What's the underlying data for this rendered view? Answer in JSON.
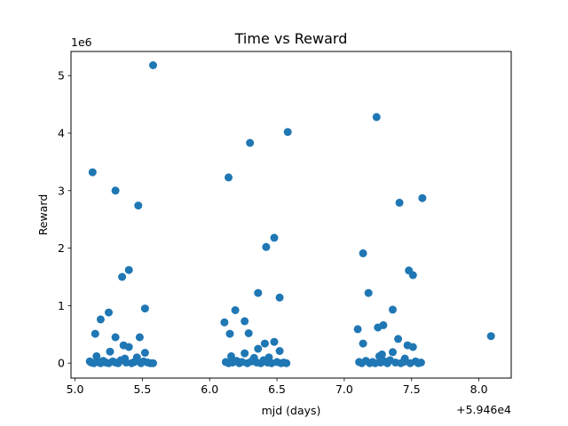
{
  "chart_data": {
    "type": "scatter",
    "title": "Time vs Reward",
    "xlabel": "mjd (days)",
    "ylabel": "Reward",
    "x_offset_label": "+5.946e4",
    "y_scale_label": "1e6",
    "xlim": [
      4.97,
      8.24
    ],
    "ylim": [
      -0.26,
      5.42
    ],
    "x_ticks": [
      5.0,
      5.5,
      6.0,
      6.5,
      7.0,
      7.5,
      8.0
    ],
    "x_tick_labels": [
      "5.0",
      "5.5",
      "6.0",
      "6.5",
      "7.0",
      "7.5",
      "8.0"
    ],
    "y_ticks": [
      0,
      1,
      2,
      3,
      4,
      5
    ],
    "y_tick_labels": [
      "0",
      "1",
      "2",
      "3",
      "4",
      "5"
    ],
    "grid": false,
    "color": "#1f77b4",
    "points": [
      {
        "x": 5.58,
        "y": 5.18
      },
      {
        "x": 5.13,
        "y": 3.32
      },
      {
        "x": 5.3,
        "y": 3.0
      },
      {
        "x": 5.47,
        "y": 2.74
      },
      {
        "x": 5.4,
        "y": 1.62
      },
      {
        "x": 5.35,
        "y": 1.5
      },
      {
        "x": 5.52,
        "y": 0.95
      },
      {
        "x": 5.25,
        "y": 0.88
      },
      {
        "x": 5.19,
        "y": 0.76
      },
      {
        "x": 5.15,
        "y": 0.51
      },
      {
        "x": 5.3,
        "y": 0.45
      },
      {
        "x": 5.48,
        "y": 0.45
      },
      {
        "x": 5.36,
        "y": 0.31
      },
      {
        "x": 5.4,
        "y": 0.28
      },
      {
        "x": 5.26,
        "y": 0.2
      },
      {
        "x": 5.52,
        "y": 0.18
      },
      {
        "x": 5.16,
        "y": 0.12
      },
      {
        "x": 5.46,
        "y": 0.1
      },
      {
        "x": 5.37,
        "y": 0.08
      },
      {
        "x": 5.11,
        "y": 0.03
      },
      {
        "x": 5.12,
        "y": 0.01
      },
      {
        "x": 5.14,
        "y": 0.0
      },
      {
        "x": 5.17,
        "y": 0.02
      },
      {
        "x": 5.19,
        "y": 0.0
      },
      {
        "x": 5.21,
        "y": 0.04
      },
      {
        "x": 5.23,
        "y": 0.01
      },
      {
        "x": 5.25,
        "y": 0.0
      },
      {
        "x": 5.28,
        "y": 0.03
      },
      {
        "x": 5.3,
        "y": 0.01
      },
      {
        "x": 5.32,
        "y": 0.0
      },
      {
        "x": 5.34,
        "y": 0.05
      },
      {
        "x": 5.38,
        "y": 0.01
      },
      {
        "x": 5.42,
        "y": 0.0
      },
      {
        "x": 5.44,
        "y": 0.02
      },
      {
        "x": 5.49,
        "y": 0.0
      },
      {
        "x": 5.51,
        "y": 0.03
      },
      {
        "x": 5.54,
        "y": 0.01
      },
      {
        "x": 5.56,
        "y": 0.0
      },
      {
        "x": 5.58,
        "y": 0.0
      },
      {
        "x": 6.58,
        "y": 4.02
      },
      {
        "x": 6.3,
        "y": 3.83
      },
      {
        "x": 6.14,
        "y": 3.23
      },
      {
        "x": 6.48,
        "y": 2.18
      },
      {
        "x": 6.42,
        "y": 2.02
      },
      {
        "x": 6.36,
        "y": 1.22
      },
      {
        "x": 6.52,
        "y": 1.14
      },
      {
        "x": 6.19,
        "y": 0.92
      },
      {
        "x": 6.26,
        "y": 0.73
      },
      {
        "x": 6.11,
        "y": 0.71
      },
      {
        "x": 6.29,
        "y": 0.52
      },
      {
        "x": 6.15,
        "y": 0.51
      },
      {
        "x": 6.48,
        "y": 0.37
      },
      {
        "x": 6.41,
        "y": 0.34
      },
      {
        "x": 6.36,
        "y": 0.25
      },
      {
        "x": 6.52,
        "y": 0.21
      },
      {
        "x": 6.26,
        "y": 0.17
      },
      {
        "x": 6.16,
        "y": 0.12
      },
      {
        "x": 6.33,
        "y": 0.09
      },
      {
        "x": 6.44,
        "y": 0.1
      },
      {
        "x": 6.12,
        "y": 0.02
      },
      {
        "x": 6.14,
        "y": 0.0
      },
      {
        "x": 6.17,
        "y": 0.01
      },
      {
        "x": 6.2,
        "y": 0.04
      },
      {
        "x": 6.22,
        "y": 0.0
      },
      {
        "x": 6.24,
        "y": 0.02
      },
      {
        "x": 6.28,
        "y": 0.0
      },
      {
        "x": 6.31,
        "y": 0.03
      },
      {
        "x": 6.35,
        "y": 0.01
      },
      {
        "x": 6.38,
        "y": 0.0
      },
      {
        "x": 6.4,
        "y": 0.05
      },
      {
        "x": 6.43,
        "y": 0.01
      },
      {
        "x": 6.46,
        "y": 0.0
      },
      {
        "x": 6.5,
        "y": 0.02
      },
      {
        "x": 6.53,
        "y": 0.0
      },
      {
        "x": 6.55,
        "y": 0.01
      },
      {
        "x": 6.57,
        "y": 0.0
      },
      {
        "x": 7.24,
        "y": 4.28
      },
      {
        "x": 7.58,
        "y": 2.87
      },
      {
        "x": 7.41,
        "y": 2.79
      },
      {
        "x": 7.14,
        "y": 1.91
      },
      {
        "x": 7.48,
        "y": 1.61
      },
      {
        "x": 7.51,
        "y": 1.53
      },
      {
        "x": 7.18,
        "y": 1.22
      },
      {
        "x": 7.36,
        "y": 0.93
      },
      {
        "x": 7.29,
        "y": 0.66
      },
      {
        "x": 7.25,
        "y": 0.62
      },
      {
        "x": 7.1,
        "y": 0.59
      },
      {
        "x": 7.4,
        "y": 0.42
      },
      {
        "x": 7.14,
        "y": 0.34
      },
      {
        "x": 7.47,
        "y": 0.31
      },
      {
        "x": 7.51,
        "y": 0.28
      },
      {
        "x": 7.36,
        "y": 0.19
      },
      {
        "x": 7.28,
        "y": 0.15
      },
      {
        "x": 7.26,
        "y": 0.12
      },
      {
        "x": 7.45,
        "y": 0.08
      },
      {
        "x": 7.11,
        "y": 0.02
      },
      {
        "x": 7.13,
        "y": 0.0
      },
      {
        "x": 7.16,
        "y": 0.04
      },
      {
        "x": 7.19,
        "y": 0.0
      },
      {
        "x": 7.21,
        "y": 0.02
      },
      {
        "x": 7.23,
        "y": 0.0
      },
      {
        "x": 7.27,
        "y": 0.01
      },
      {
        "x": 7.3,
        "y": 0.03
      },
      {
        "x": 7.32,
        "y": 0.0
      },
      {
        "x": 7.34,
        "y": 0.05
      },
      {
        "x": 7.38,
        "y": 0.01
      },
      {
        "x": 7.42,
        "y": 0.0
      },
      {
        "x": 7.44,
        "y": 0.02
      },
      {
        "x": 7.49,
        "y": 0.0
      },
      {
        "x": 7.53,
        "y": 0.03
      },
      {
        "x": 7.55,
        "y": 0.0
      },
      {
        "x": 7.57,
        "y": 0.01
      },
      {
        "x": 8.09,
        "y": 0.47
      }
    ]
  }
}
